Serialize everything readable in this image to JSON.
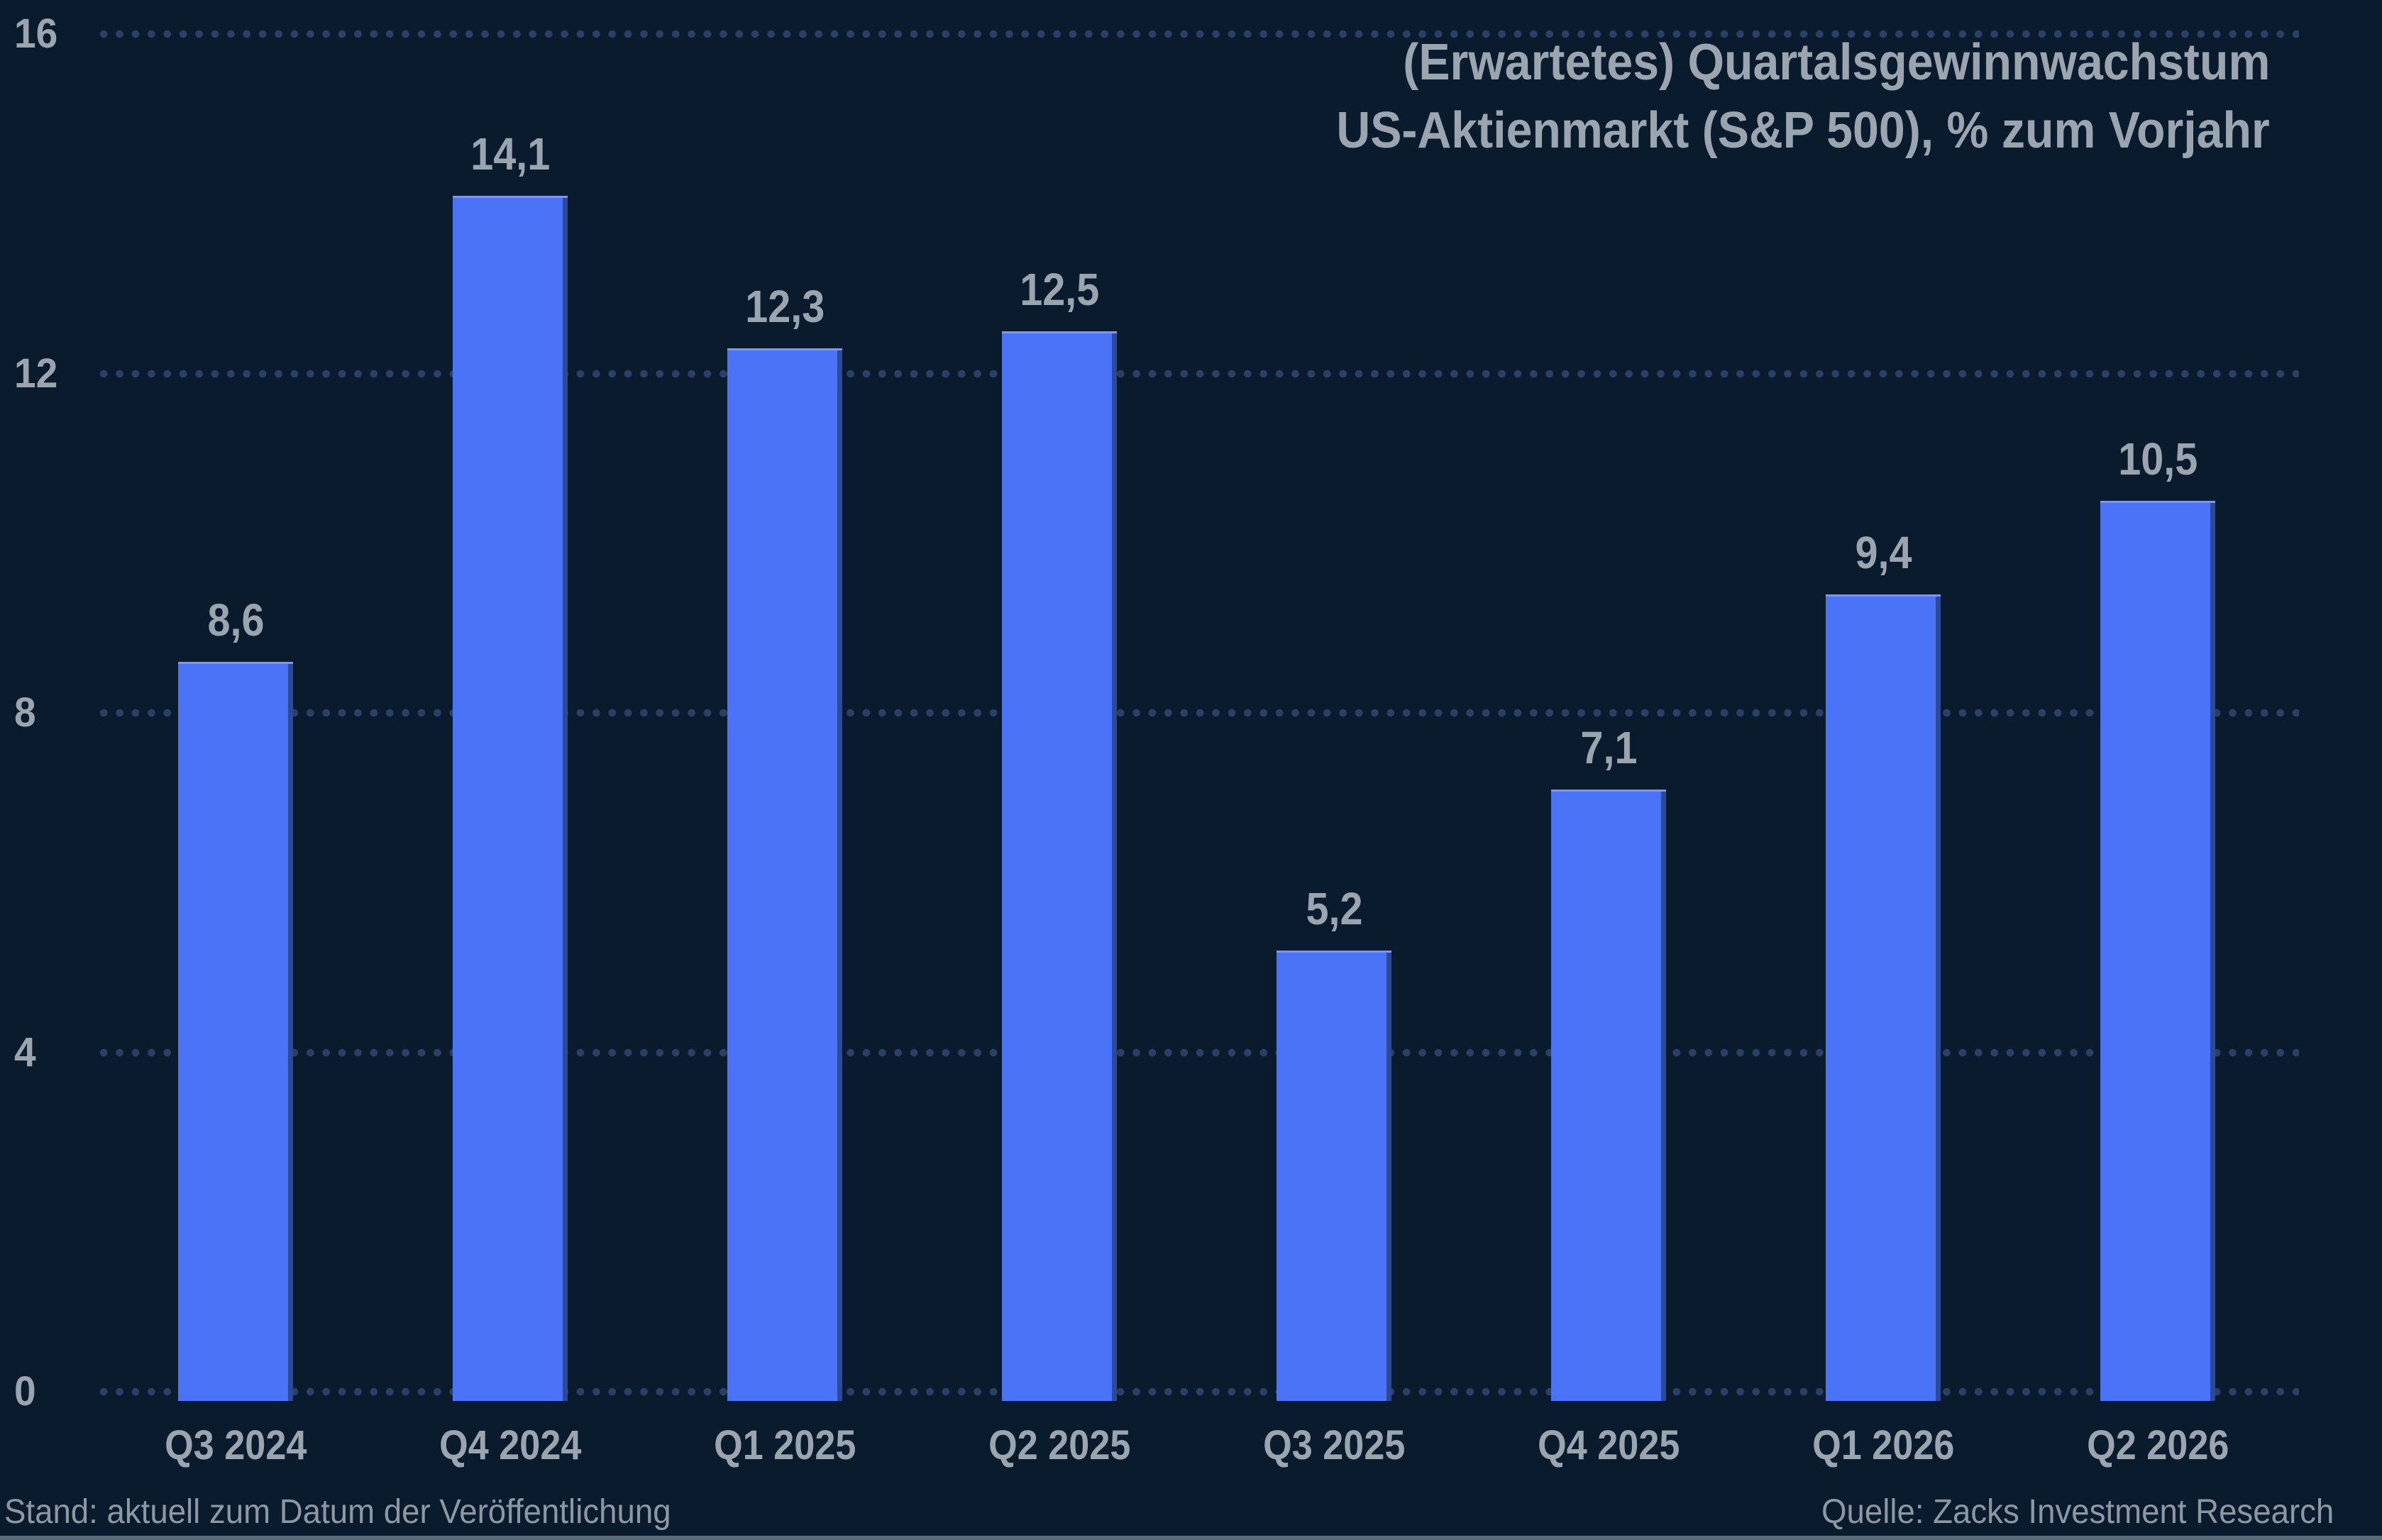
{
  "page": {
    "background_color": "#0a1b2d",
    "bottom_rule_color": "#5a6a79"
  },
  "title": {
    "line1": "(Erwartetes) Quartalsgewinnwachstum",
    "line2": "US-Aktienmarkt (S&P 500), % zum Vorjahr",
    "color": "#9aa5b0"
  },
  "footer": {
    "left_note": "Stand: aktuell zum Datum der Veröffentlichung",
    "right_note": "Quelle: Zacks Investment Research"
  },
  "chart_data": {
    "type": "bar",
    "title": "(Erwartetes) Quartalsgewinnwachstum US-Aktienmarkt (S&P 500), % zum Vorjahr",
    "categories": [
      "Q3 2024",
      "Q4 2024",
      "Q1 2025",
      "Q2 2025",
      "Q3 2025",
      "Q4 2025",
      "Q1 2026",
      "Q2 2026"
    ],
    "values": [
      8.6,
      14.1,
      12.3,
      12.5,
      5.2,
      7.1,
      9.4,
      10.5
    ],
    "value_labels": [
      "8,6",
      "14,1",
      "12,3",
      "12,5",
      "5,2",
      "7,1",
      "9,4",
      "10,5"
    ],
    "xlabel": "",
    "ylabel": "",
    "ylim": [
      0,
      16
    ],
    "yticks": [
      16,
      12,
      8,
      4,
      0
    ],
    "ytick_labels": [
      "16",
      "12",
      "8",
      "4",
      "0"
    ],
    "grid": "horizontal dotted lines",
    "legend": "none",
    "bar_color": "#4b73f8",
    "bar_top_edge_color": "#7d95fa",
    "bar_right_shade_color": "#2e4a92",
    "grid_dot_color": "#2b4067",
    "label_color": "#9aa5b0"
  }
}
